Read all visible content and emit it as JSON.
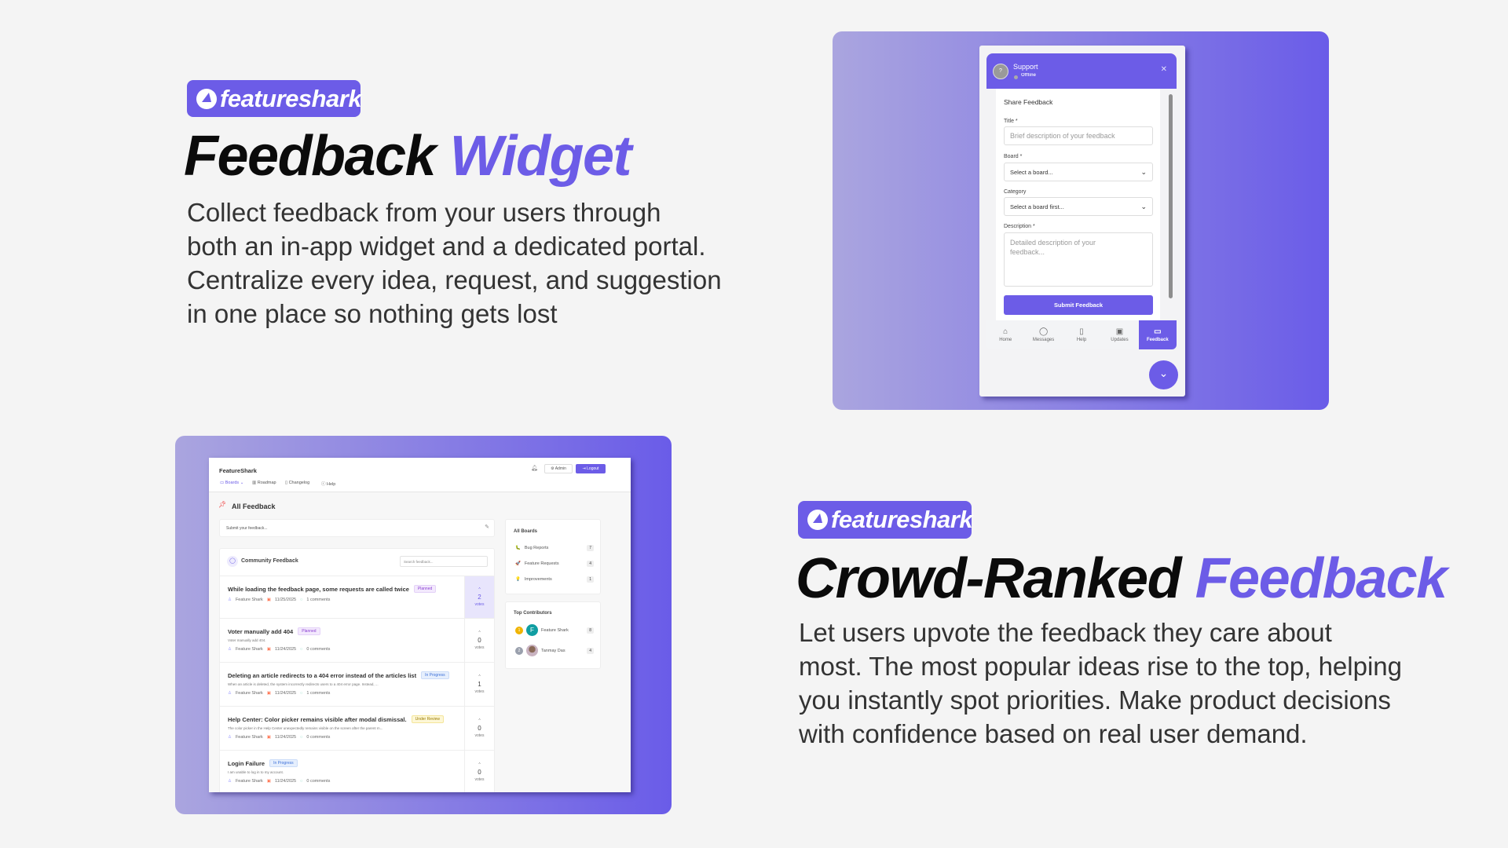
{
  "section1": {
    "brand": "featureshark",
    "title_plain": "Feedback",
    "title_accent": "Widget",
    "lines": [
      "Collect feedback from your users through",
      "both an in-app widget and a dedicated portal.",
      "Centralize every idea, request, and suggestion",
      "in one place so nothing gets lost"
    ]
  },
  "section2": {
    "brand": "featureshark",
    "title_plain": "Crowd-Ranked",
    "title_accent": "Feedback",
    "lines": [
      "Let users upvote the feedback they care about",
      "most. The most popular ideas rise to the top, helping",
      "you instantly spot priorities. Make product decisions",
      "with confidence based on real user demand."
    ]
  },
  "colors": {
    "accent": "#6c5ce7",
    "background": "#f4f4f4"
  },
  "widget": {
    "avatar": "?",
    "name": "Support",
    "status": "Offline",
    "close_icon": "close-icon",
    "heading": "Share Feedback",
    "title_label": "Title *",
    "title_placeholder": "Brief description of your feedback",
    "board_label": "Board *",
    "board_value": "Select a board...",
    "category_label": "Category",
    "category_value": "Select a board first...",
    "description_label": "Description *",
    "description_placeholder": "Detailed description of your feedback...",
    "submit": "Submit Feedback",
    "tabs": [
      {
        "label": "Home",
        "icon": "⌂"
      },
      {
        "label": "Messages",
        "icon": "◯"
      },
      {
        "label": "Help",
        "icon": "▯"
      },
      {
        "label": "Updates",
        "icon": "▣"
      },
      {
        "label": "Feedback",
        "icon": "▭",
        "active": true
      }
    ],
    "fab_icon": "⌄"
  },
  "board": {
    "app_name": "FeatureShark",
    "nav": [
      {
        "label": "Boards ⌄",
        "active": true
      },
      {
        "label": "Roadmap"
      },
      {
        "label": "Changelog"
      },
      {
        "label": "Help"
      }
    ],
    "admin": "Admin",
    "logout": "Logout",
    "page_title": "All Feedback",
    "submit_placeholder": "Submit your feedback...",
    "community_title": "Community Feedback",
    "search_placeholder": "Search feedback...",
    "votes_label": "votes",
    "posts": [
      {
        "title": "While loading the feedback page, some requests are called twice",
        "status": "Planned",
        "desc": "",
        "author": "Feature Shark",
        "date": "11/25/2025",
        "comments": "1 comments",
        "votes": "2"
      },
      {
        "title": "Voter manually add 404",
        "status": "Planned",
        "desc": "Voter manually add 404.",
        "author": "Feature Shark",
        "date": "11/24/2025",
        "comments": "0 comments",
        "votes": "0"
      },
      {
        "title": "Deleting an article redirects to a 404 error instead of the articles list",
        "status": "In Progress",
        "desc": "When an article is deleted, the system incorrectly redirects users to a 404 error page. Instead, ...",
        "author": "Feature Shark",
        "date": "11/24/2025",
        "comments": "1 comments",
        "votes": "1"
      },
      {
        "title": "Help Center: Color picker remains visible after modal dismissal.",
        "status": "Under Review",
        "desc": "The color picker in the Help Center unexpectedly remains visible on the screen after the parent m...",
        "author": "Feature Shark",
        "date": "11/24/2025",
        "comments": "0 comments",
        "votes": "0"
      },
      {
        "title": "Login Failure",
        "status": "In Progress",
        "desc": "I am unable to log in to my account.",
        "author": "Feature Shark",
        "date": "11/24/2025",
        "comments": "0 comments",
        "votes": "0"
      }
    ],
    "all_boards_title": "All Boards",
    "boards": [
      {
        "icon": "🐛",
        "name": "Bug Reports",
        "count": "7"
      },
      {
        "icon": "🚀",
        "name": "Feature Requests",
        "count": "4"
      },
      {
        "icon": "💡",
        "name": "Improvements",
        "count": "1"
      }
    ],
    "contributors_title": "Top Contributors",
    "contributors": [
      {
        "rank": "1",
        "initial": "F",
        "name": "Feature Shark",
        "count": "8"
      },
      {
        "rank": "2",
        "initial": "T",
        "name": "Tanmay Das",
        "count": "4"
      }
    ]
  }
}
